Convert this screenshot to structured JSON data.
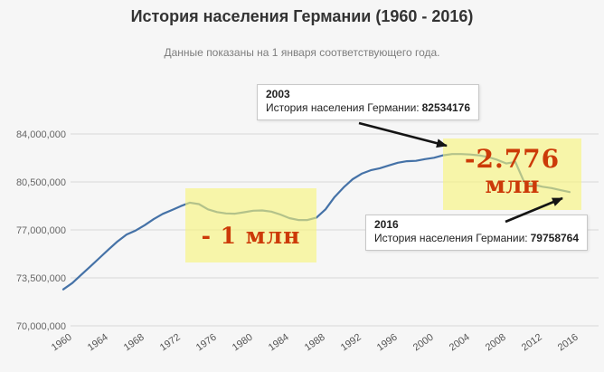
{
  "header": {
    "title": "История населения Германии (1960 - 2016)",
    "subtitle": "Данные показаны на 1 января соответствующего года."
  },
  "chart_data": {
    "type": "line",
    "title": "История населения Германии (1960 - 2016)",
    "series_name": "История населения Германии",
    "x": [
      1960,
      1961,
      1962,
      1963,
      1964,
      1965,
      1966,
      1967,
      1968,
      1969,
      1970,
      1971,
      1972,
      1973,
      1974,
      1975,
      1976,
      1977,
      1978,
      1979,
      1980,
      1981,
      1982,
      1983,
      1984,
      1985,
      1986,
      1987,
      1988,
      1989,
      1990,
      1991,
      1992,
      1993,
      1994,
      1995,
      1996,
      1997,
      1998,
      1999,
      2000,
      2001,
      2002,
      2003,
      2004,
      2005,
      2006,
      2007,
      2008,
      2009,
      2010,
      2011,
      2012,
      2013,
      2014,
      2015,
      2016
    ],
    "values": [
      72664000,
      73123000,
      73739000,
      74340000,
      74954000,
      75567000,
      76160000,
      76661000,
      76952000,
      77346000,
      77784000,
      78168000,
      78449000,
      78740000,
      78990000,
      78882000,
      78499000,
      78298000,
      78199000,
      78180000,
      78289000,
      78401000,
      78421000,
      78337000,
      78124000,
      77859000,
      77721000,
      77718000,
      77901000,
      78500000,
      79400000,
      80100000,
      80700000,
      81100000,
      81350000,
      81500000,
      81700000,
      81900000,
      82012000,
      82037000,
      82163000,
      82260000,
      82440000,
      82534176,
      82531000,
      82501000,
      82438000,
      82315000,
      82110000,
      81850000,
      81950000,
      80450000,
      80300000,
      80150000,
      80050000,
      79900000,
      79758764
    ],
    "xticks": [
      1960,
      1964,
      1968,
      1972,
      1976,
      1980,
      1984,
      1988,
      1992,
      1996,
      2000,
      2004,
      2008,
      2012,
      2016
    ],
    "ytick_values": [
      84000000,
      80500000,
      77000000,
      73500000,
      70000000
    ],
    "ytick_labels": [
      "84,000,000",
      "80,500,000",
      "77,000,000",
      "73,500,000",
      "70,000,000"
    ],
    "ylim": [
      70000000,
      84000000
    ],
    "xlim": [
      1960,
      2016
    ],
    "grid": "horizontal",
    "legend": "none",
    "line_color": "#4572A7"
  },
  "tooltips": {
    "t2003": {
      "year": "2003",
      "label": "История населения Германии:",
      "value": "82534176"
    },
    "t2016": {
      "year": "2016",
      "label": "История населения Германии:",
      "value": "79758764"
    }
  },
  "annotations": {
    "loss_1m": "- 1 млн",
    "loss_2776_line1": "-2.776",
    "loss_2776_line2": "млн",
    "highlight_color": "#F7F379",
    "loss_text_color": "#CC3A08",
    "arrow_color": "#141414"
  }
}
